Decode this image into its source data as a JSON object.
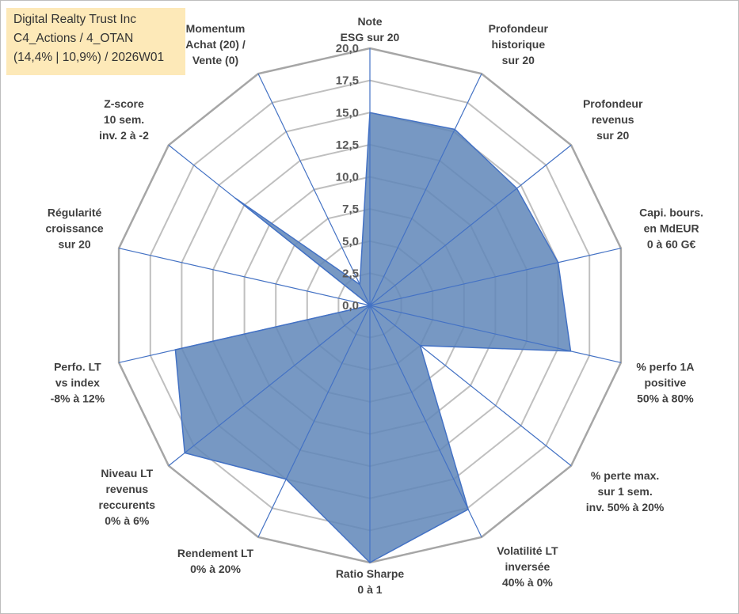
{
  "title_box": {
    "line1": "Digital Realty Trust Inc",
    "line2": "C4_Actions / 4_OTAN",
    "line3": "(14,4% | 10,9%) / 2026W01",
    "background": "#fde9b8"
  },
  "chart_data": {
    "type": "radar",
    "title": "Digital Realty Trust Inc",
    "rmax": 20,
    "ticks": [
      "0,0",
      "2,5",
      "5,0",
      "7,5",
      "10,0",
      "12,5",
      "15,0",
      "17,5",
      "20,0"
    ],
    "tick_values": [
      0,
      2.5,
      5,
      7.5,
      10,
      12.5,
      15,
      17.5,
      20
    ],
    "axes": [
      {
        "lines": [
          "Note",
          "ESG sur 20"
        ],
        "value": 15.0
      },
      {
        "lines": [
          "Profondeur",
          "historique",
          "sur 20"
        ],
        "value": 15.2
      },
      {
        "lines": [
          "Profondeur",
          "revenus",
          "sur 20"
        ],
        "value": 14.6
      },
      {
        "lines": [
          "Capi. bours.",
          "en MdEUR",
          "0 à 60 G€"
        ],
        "value": 15.0
      },
      {
        "lines": [
          "% perfo 1A",
          "positive",
          "50% à 80%"
        ],
        "value": 16.0
      },
      {
        "lines": [
          "% perte max.",
          "sur 1 sem.",
          "inv. 50% à 20%"
        ],
        "value": 5.0
      },
      {
        "lines": [
          "Volatilité LT",
          "inversée",
          "40% à 0%"
        ],
        "value": 17.6
      },
      {
        "lines": [
          "Ratio Sharpe",
          "0 à 1"
        ],
        "value": 20.0
      },
      {
        "lines": [
          "Rendement LT",
          "0% à 20%"
        ],
        "value": 15.0
      },
      {
        "lines": [
          "Niveau LT",
          "revenus",
          "reccurents",
          "0% à 6%"
        ],
        "value": 18.4
      },
      {
        "lines": [
          "Perfo. LT",
          "vs index",
          "-8% à 12%"
        ],
        "value": 15.5
      },
      {
        "lines": [
          "Régularité",
          "croissance",
          "sur 20"
        ],
        "value": 0.0
      },
      {
        "lines": [
          "Z-score",
          "10 sem.",
          "inv. 2 à -2"
        ],
        "value": 13.4
      },
      {
        "lines": [
          "Momentum",
          "Achat (20) /",
          "Vente (0)"
        ],
        "value": 1.8
      }
    ],
    "colors": {
      "fill": "#5f86b8",
      "stroke": "#4472c4",
      "grid": "#bfbfbf",
      "outer_ring": "#a6a6a6",
      "spoke": "#4472c4"
    }
  }
}
